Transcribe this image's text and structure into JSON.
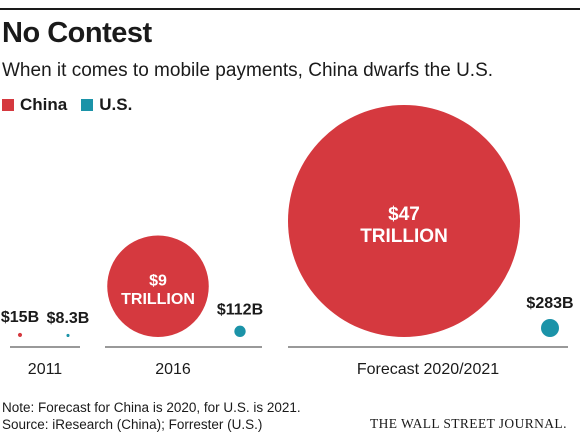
{
  "chart_data": {
    "type": "bubble",
    "title": "No Contest",
    "subtitle": "When it comes to mobile payments, China dwarfs the U.S.",
    "series": [
      {
        "name": "China",
        "color": "#d5393f"
      },
      {
        "name": "U.S.",
        "color": "#1b93a8"
      }
    ],
    "groups": [
      {
        "label": "2011",
        "points": [
          {
            "series": "China",
            "value_billions": 15,
            "label": "$15B"
          },
          {
            "series": "U.S.",
            "value_billions": 8.3,
            "label": "$8.3B"
          }
        ]
      },
      {
        "label": "2016",
        "points": [
          {
            "series": "China",
            "value_billions": 9000,
            "label": [
              "$9",
              "TRILLION"
            ]
          },
          {
            "series": "U.S.",
            "value_billions": 112,
            "label": "$112B"
          }
        ]
      },
      {
        "label": "Forecast 2020/2021",
        "points": [
          {
            "series": "China",
            "value_billions": 47000,
            "label": [
              "$47",
              "TRILLION"
            ]
          },
          {
            "series": "U.S.",
            "value_billions": 283,
            "label": "$283B"
          }
        ]
      }
    ]
  },
  "footnote": {
    "note": "Note: Forecast for China is 2020, for U.S. is 2021.",
    "source": "Source: iResearch (China); Forrester (U.S.)"
  },
  "publisher": "THE WALL STREET JOURNAL."
}
